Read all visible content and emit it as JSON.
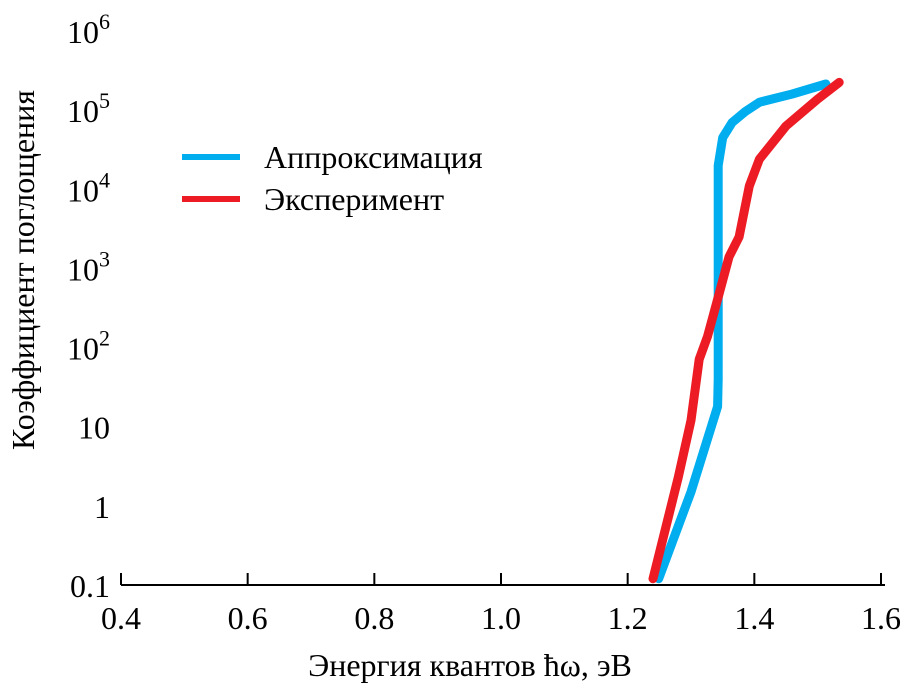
{
  "chart_data": {
    "type": "line",
    "title": "",
    "xlabel": "Энергия квантов ħω, эВ",
    "ylabel": "Коэффициент поглощения",
    "xlim": [
      0.4,
      1.6
    ],
    "ylim": [
      0.1,
      1000000
    ],
    "yscale": "log",
    "grid": false,
    "legend_position": "top-left",
    "x_ticks": [
      "0.4",
      "0.6",
      "0.8",
      "1.0",
      "1.2",
      "1.4",
      "1.6"
    ],
    "x_tick_values": [
      0.4,
      0.6,
      0.8,
      1.0,
      1.2,
      1.4,
      1.6
    ],
    "y_ticks": [
      {
        "value": 0.1,
        "base": "0.1",
        "exp": ""
      },
      {
        "value": 1,
        "base": "1",
        "exp": ""
      },
      {
        "value": 10,
        "base": "10",
        "exp": ""
      },
      {
        "value": 100,
        "base": "10",
        "exp": "2"
      },
      {
        "value": 1000,
        "base": "10",
        "exp": "3"
      },
      {
        "value": 10000,
        "base": "10",
        "exp": "4"
      },
      {
        "value": 100000,
        "base": "10",
        "exp": "5"
      },
      {
        "value": 1000000,
        "base": "10",
        "exp": "6"
      }
    ],
    "series": [
      {
        "name": "Аппроксимация",
        "color": "#00aeef",
        "x": [
          1.249,
          1.3,
          1.342,
          1.343,
          1.343,
          1.343,
          1.35,
          1.365,
          1.385,
          1.408,
          1.46,
          1.513
        ],
        "y": [
          0.12,
          1.5,
          18,
          40,
          1000,
          20000,
          45000,
          70000,
          95000,
          126000,
          160000,
          214000
        ]
      },
      {
        "name": "Эксперимент",
        "color": "#ed1c24",
        "x": [
          1.24,
          1.28,
          1.3,
          1.313,
          1.326,
          1.345,
          1.36,
          1.376,
          1.392,
          1.408,
          1.45,
          1.5,
          1.534
        ],
        "y": [
          0.12,
          2.3,
          12,
          71,
          138,
          500,
          1400,
          2500,
          11000,
          24000,
          63000,
          138000,
          224000
        ]
      }
    ]
  }
}
